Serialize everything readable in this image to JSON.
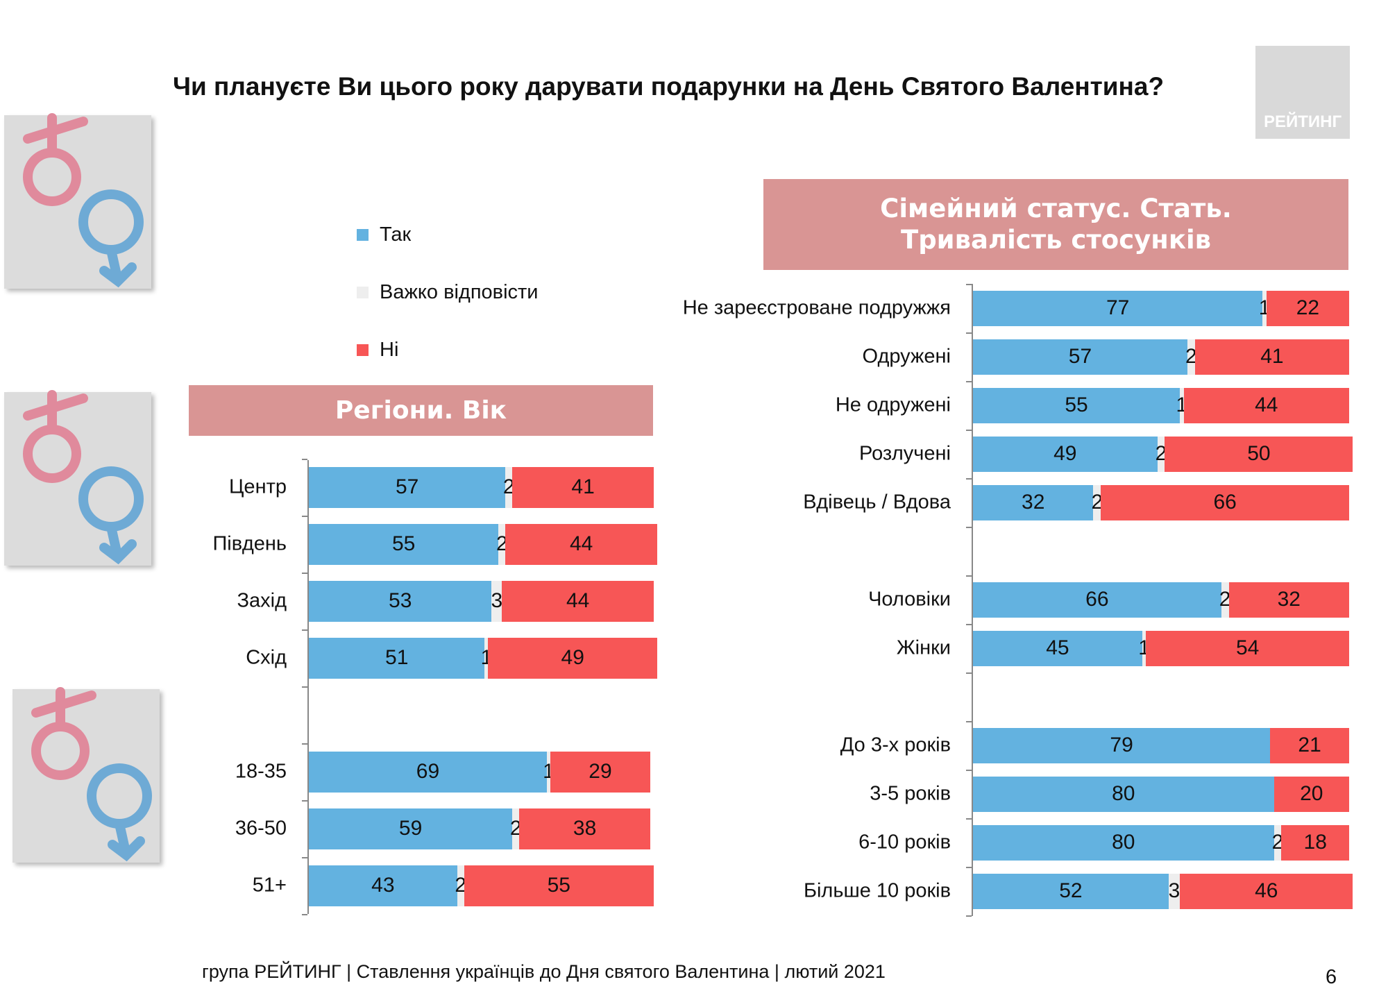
{
  "title": "Чи плануєте Ви цього року дарувати подарунки на День Святого Валентина?",
  "logo_text": "РЕЙТИНГ",
  "footer": "група РЕЙТИНГ | Ставлення українців до Дня святого Валентина | лютий 2021",
  "page_number": "6",
  "colors": {
    "yes": "#63b2e0",
    "hard": "#eeeeee",
    "no": "#f75656",
    "header_bg": "#d99594"
  },
  "chart_data": [
    {
      "type": "bar",
      "orientation": "horizontal",
      "stacked": true,
      "title": "Регіони. Вік",
      "legend": [
        "Так",
        "Важко відповісти",
        "Ні"
      ],
      "legend_placement": "top",
      "categories": [
        "Центр",
        "Південь",
        "Захід",
        "Схід",
        "",
        "18-35",
        "36-50",
        "51+"
      ],
      "series": [
        {
          "name": "Так",
          "values": [
            57,
            55,
            53,
            51,
            null,
            69,
            59,
            43
          ]
        },
        {
          "name": "Важко відповісти",
          "values": [
            2,
            2,
            3,
            1,
            null,
            1,
            2,
            2
          ]
        },
        {
          "name": "Ні",
          "values": [
            41,
            44,
            44,
            49,
            null,
            29,
            38,
            55
          ]
        }
      ],
      "xlim": [
        0,
        100
      ]
    },
    {
      "type": "bar",
      "orientation": "horizontal",
      "stacked": true,
      "title_lines": [
        "Сімейний статус. Стать.",
        "Тривалість стосунків"
      ],
      "categories": [
        "Не зареєстроване подружжя",
        "Одружені",
        "Не одружені",
        "Розлучені",
        "Вдівець / Вдова",
        "",
        "Чоловіки",
        "Жінки",
        "",
        "До 3-х років",
        "3-5 років",
        "6-10 років",
        "Більше 10 років"
      ],
      "series": [
        {
          "name": "Так",
          "values": [
            77,
            57,
            55,
            49,
            32,
            null,
            66,
            45,
            null,
            79,
            80,
            80,
            52
          ]
        },
        {
          "name": "Важко відповісти",
          "values": [
            1,
            2,
            1,
            2,
            2,
            null,
            2,
            1,
            null,
            null,
            null,
            2,
            3
          ]
        },
        {
          "name": "Ні",
          "values": [
            22,
            41,
            44,
            50,
            66,
            null,
            32,
            54,
            null,
            21,
            20,
            18,
            46
          ]
        }
      ],
      "xlim": [
        0,
        100
      ]
    }
  ]
}
